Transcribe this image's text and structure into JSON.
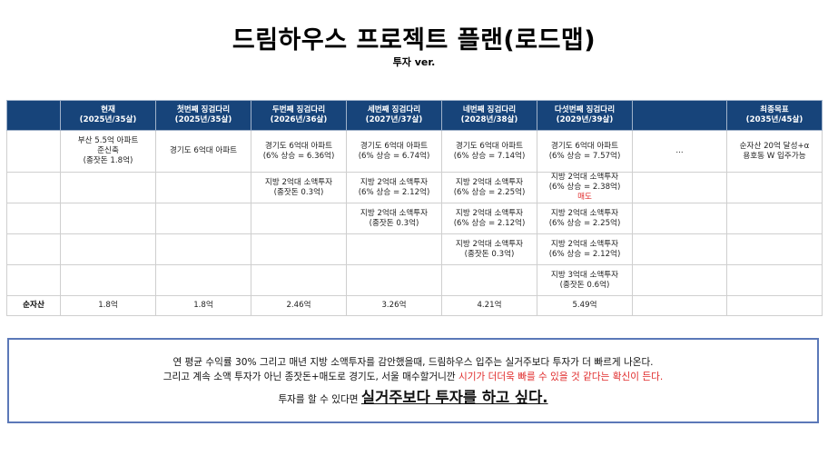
{
  "title": "드림하우스 프로젝트 플랜(로드맵)",
  "subtitle": "투자 ver.",
  "table": {
    "headers": [
      {
        "name": "",
        "age": ""
      },
      {
        "name": "현재",
        "age": "(2025년/35살)"
      },
      {
        "name": "첫번째 징검다리",
        "age": "(2025년/35살)"
      },
      {
        "name": "두번째 징검다리",
        "age": "(2026년/36살)"
      },
      {
        "name": "세번째 징검다리",
        "age": "(2027년/37살)"
      },
      {
        "name": "네번째 징검다리",
        "age": "(2028년/38살)"
      },
      {
        "name": "다섯번째 징검다리",
        "age": "(2029년/39살)"
      },
      {
        "name": "",
        "age": ""
      },
      {
        "name": "최종목표",
        "age": "(2035년/45살)"
      }
    ],
    "rows": [
      [
        [],
        [
          "부산 5.5억 아파트",
          "준신축",
          "(종잣돈 1.8억)"
        ],
        [
          "경기도 6억대 아파트"
        ],
        [
          "경기도 6억대 아파트",
          "(6% 상승 = 6.36억)"
        ],
        [
          "경기도 6억대 아파트",
          "(6% 상승 = 6.74억)"
        ],
        [
          "경기도 6억대 아파트",
          "(6% 상승 = 7.14억)"
        ],
        [
          "경기도 6억대 아파트",
          "(6% 상승 = 7.57억)"
        ],
        [
          "..."
        ],
        [
          "순자산 20억 달성+α",
          "용호동 W 입주가능"
        ]
      ],
      [
        [],
        [],
        [],
        [
          "지방 2억대 소액투자",
          "(종잣돈 0.3억)"
        ],
        [
          "지방 2억대 소액투자",
          "(6% 상승 = 2.12억)"
        ],
        [
          "지방 2억대 소액투자",
          "(6% 상승 = 2.25억)"
        ],
        [
          "지방 2억대 소액투자",
          "(6% 상승 = 2.38억)"
        ],
        [],
        []
      ],
      [
        [],
        [],
        [],
        [],
        [
          "지방 2억대 소액투자",
          "(종잣돈 0.3억)"
        ],
        [
          "지방 2억대 소액투자",
          "(6% 상승 = 2.12억)"
        ],
        [
          "지방 2억대 소액투자",
          "(6% 상승 = 2.25억)"
        ],
        [],
        []
      ],
      [
        [],
        [],
        [],
        [],
        [],
        [
          "지방 2억대 소액투자",
          "(종잣돈 0.3억)"
        ],
        [
          "지방 2억대 소액투자",
          "(6% 상승 = 2.12억)"
        ],
        [],
        []
      ],
      [
        [],
        [],
        [],
        [],
        [],
        [],
        [
          "지방 3억대 소액투자",
          "(종잣돈 0.6억)"
        ],
        [],
        []
      ]
    ],
    "sell_label": "매도",
    "total": [
      "순자산",
      "1.8억",
      "1.8억",
      "2.46억",
      "3.26억",
      "4.21억",
      "5.49억",
      "",
      ""
    ]
  },
  "note": {
    "line1": "연 평균 수익률 30% 그리고 매년 지방 소액투자를 감안했을때, 드림하우스 입주는 실거주보다 투자가 더 빠르게 나온다.",
    "line2_normal": "그리고 계속 소액 투자가 아닌 종잣돈+매도로 경기도, 서울 매수할거니깐 ",
    "line2_red": "시기가 더더욱 빠를 수 있을 것 같다는 확신이 든다.",
    "line3_small": "투자를 할 수 있다면 ",
    "line3_big": "실거주보다 투자를 하고 싶다."
  },
  "colors": {
    "header_bg": "#17447a",
    "header_text": "#ffffff",
    "accent_red": "#e02b2b",
    "note_border": "#5b78b8"
  }
}
